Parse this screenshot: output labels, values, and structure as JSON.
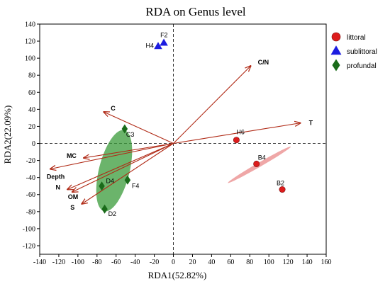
{
  "chart_data": {
    "type": "scatter",
    "title": "RDA on Genus level",
    "xlabel": "RDA1(52.82%)",
    "ylabel": "RDA2(22.09%)",
    "xlim": [
      -140,
      160
    ],
    "ylim": [
      -130,
      140
    ],
    "xticks": [
      -140,
      -120,
      -100,
      -80,
      -60,
      -40,
      -20,
      0,
      20,
      40,
      60,
      80,
      100,
      120,
      140,
      160
    ],
    "yticks": [
      -120,
      -100,
      -80,
      -60,
      -40,
      -20,
      0,
      20,
      40,
      60,
      80,
      100,
      120,
      140
    ],
    "grid": false,
    "legend_position": "top-right",
    "series": [
      {
        "name": "littoral",
        "marker": "circle",
        "color": "#dd1c1c",
        "points": [
          {
            "label": "H6",
            "x": 66,
            "y": 4
          },
          {
            "label": "B4",
            "x": 87,
            "y": -24
          },
          {
            "label": "B2",
            "x": 114,
            "y": -54
          }
        ]
      },
      {
        "name": "sublittoral",
        "marker": "triangle",
        "color": "#1c1ce0",
        "points": [
          {
            "label": "H4",
            "x": -16,
            "y": 114
          },
          {
            "label": "F2",
            "x": -10,
            "y": 118
          }
        ]
      },
      {
        "name": "profundal",
        "marker": "diamond",
        "color": "#1a6b1a",
        "points": [
          {
            "label": "C3",
            "x": -51,
            "y": 17
          },
          {
            "label": "F4",
            "x": -48,
            "y": -43
          },
          {
            "label": "D4",
            "x": -75,
            "y": -50
          },
          {
            "label": "D2",
            "x": -72,
            "y": -77
          }
        ]
      }
    ],
    "env_vectors": [
      {
        "label": "C/N",
        "x": 81,
        "y": 91
      },
      {
        "label": "T",
        "x": 133,
        "y": 24
      },
      {
        "label": "C",
        "x": -73,
        "y": 37
      },
      {
        "label": "MC",
        "x": -94,
        "y": -17
      },
      {
        "label": "Depth",
        "x": -129,
        "y": -30
      },
      {
        "label": "N",
        "x": -111,
        "y": -54
      },
      {
        "label": "OM",
        "x": -106,
        "y": -57
      },
      {
        "label": "S",
        "x": -96,
        "y": -71
      }
    ],
    "ellipses": [
      {
        "group": "profundal",
        "cx": -62,
        "cy": -32,
        "rx": 16,
        "ry": 49,
        "rotate_deg": 14,
        "color": "#3a9b3a"
      },
      {
        "group": "littoral",
        "cx": 90,
        "cy": -25,
        "rx": 38,
        "ry": 2.5,
        "rotate_deg": -30,
        "color": "#ea8a8a"
      }
    ],
    "arrow_color": "#b02a16"
  }
}
